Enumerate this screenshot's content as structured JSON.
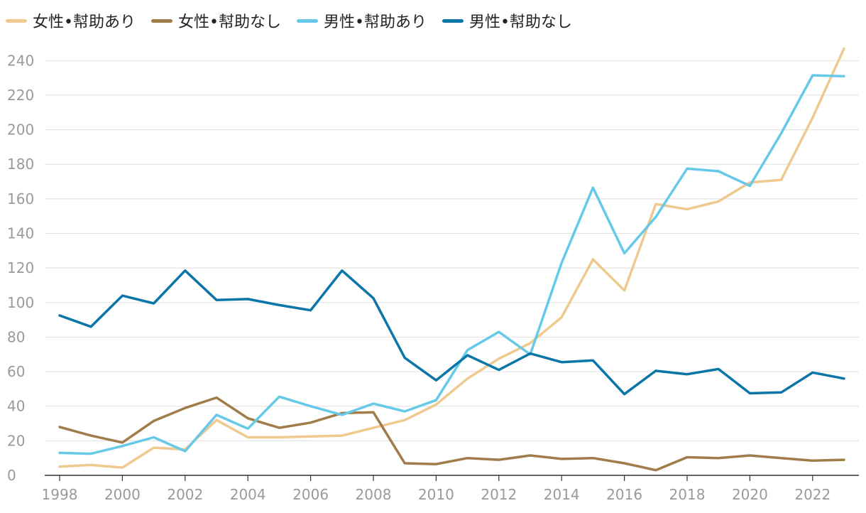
{
  "chart_data": {
    "type": "line",
    "title": "",
    "xlabel": "",
    "ylabel": "",
    "ylim": [
      0,
      250
    ],
    "yticks": [
      0,
      20,
      40,
      60,
      80,
      100,
      120,
      140,
      160,
      180,
      200,
      220,
      240
    ],
    "xticks": [
      1998,
      2000,
      2002,
      2004,
      2006,
      2008,
      2010,
      2012,
      2014,
      2016,
      2018,
      2020,
      2022
    ],
    "legend_position": "top-left",
    "grid": true,
    "x": [
      1998,
      1999,
      2000,
      2001,
      2002,
      2003,
      2004,
      2005,
      2006,
      2007,
      2008,
      2009,
      2010,
      2011,
      2012,
      2013,
      2014,
      2015,
      2016,
      2017,
      2018,
      2019,
      2020,
      2021,
      2022,
      2023
    ],
    "series": [
      {
        "name": "女性•幇助あり",
        "color": "#f0c990",
        "values": [
          5,
          6,
          4.5,
          16,
          15,
          32,
          22,
          22,
          22.5,
          23,
          27.5,
          32,
          41,
          56,
          67.5,
          76.5,
          91.5,
          125,
          107,
          157,
          154,
          158.5,
          169.5,
          171,
          207,
          247
        ]
      },
      {
        "name": "女性•幇助なし",
        "color": "#a07c4a",
        "values": [
          28,
          23,
          19,
          31.5,
          39,
          45,
          33,
          27.5,
          30.5,
          36,
          36.5,
          7,
          6.5,
          10,
          9,
          11.5,
          9.5,
          10,
          7,
          3,
          10.5,
          10,
          11.5,
          10,
          8.5,
          9
        ]
      },
      {
        "name": "男性•幇助あり",
        "color": "#66c9e8",
        "values": [
          13,
          12.5,
          17,
          22,
          14,
          35,
          27,
          45.5,
          40,
          35,
          41.5,
          37,
          43.5,
          72.5,
          83,
          70,
          123,
          166.5,
          128.5,
          149.5,
          177.5,
          176,
          167.5,
          198,
          231.5,
          231
        ]
      },
      {
        "name": "男性•幇助なし",
        "color": "#0a75a8",
        "values": [
          92.5,
          86,
          104,
          99.5,
          118.5,
          101.5,
          102,
          98.5,
          95.5,
          118.5,
          102.5,
          68,
          55,
          69.5,
          61,
          70.5,
          65.5,
          66.5,
          47,
          60.5,
          58.5,
          61.5,
          47.5,
          48,
          59.5,
          56
        ]
      }
    ]
  }
}
